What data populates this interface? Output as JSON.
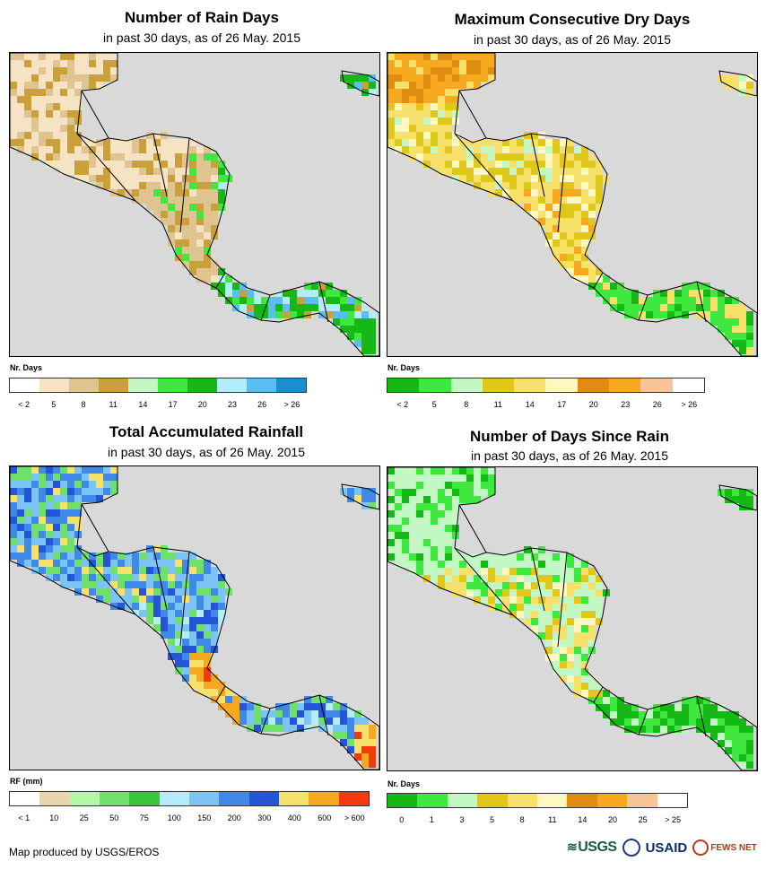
{
  "panels": [
    {
      "title": "Number of Rain Days",
      "subtitle": "in past 30 days, as of 26 May. 2015",
      "legend_label": "Nr. Days",
      "legend_colors": [
        "#ffffff",
        "#f5e3c3",
        "#e0c48f",
        "#c9a03a",
        "#c3f7c3",
        "#3ee83e",
        "#15b815",
        "#b5ecfb",
        "#5bbef0",
        "#1a8fd0"
      ],
      "ticks": [
        "< 2",
        "5",
        "8",
        "11",
        "14",
        "17",
        "20",
        "23",
        "26",
        "> 26"
      ],
      "scheme": "raindays"
    },
    {
      "title": "Maximum Consecutive Dry Days",
      "subtitle": "in past 30 days, as of 26 May. 2015",
      "legend_label": "Nr. Days",
      "legend_colors": [
        "#15b815",
        "#3ee83e",
        "#c3f7c3",
        "#e0c81a",
        "#f8e16a",
        "#fdf7c2",
        "#e08c10",
        "#f6a81e",
        "#f7c59a",
        "#ffffff"
      ],
      "ticks": [
        "< 2",
        "5",
        "8",
        "11",
        "14",
        "17",
        "20",
        "23",
        "26",
        "> 26"
      ],
      "scheme": "drydays"
    },
    {
      "title": "Total Accumulated Rainfall",
      "subtitle": "in past 30 days, as of 26 May. 2015",
      "legend_label": "RF (mm)",
      "legend_colors": [
        "#ffffff",
        "#e8d5b0",
        "#b5f7a2",
        "#6fe06a",
        "#38c838",
        "#b5ecfb",
        "#7cc4f5",
        "#3f8ae8",
        "#2355d6",
        "#f8e16a",
        "#f6a81e",
        "#f23a0a"
      ],
      "ticks": [
        "< 1",
        "10",
        "25",
        "50",
        "75",
        "100",
        "150",
        "200",
        "300",
        "400",
        "600",
        "> 600"
      ],
      "scheme": "rainfall"
    },
    {
      "title": "Number of Days Since Rain",
      "subtitle": "in past 30 days, as of 26 May. 2015",
      "legend_label": "Nr. Days",
      "legend_colors": [
        "#15b815",
        "#3ee83e",
        "#c3f7c3",
        "#e0c81a",
        "#f8e16a",
        "#fdf7c2",
        "#e08c10",
        "#f6a81e",
        "#f7c59a",
        "#ffffff"
      ],
      "ticks": [
        "0",
        "1",
        "3",
        "5",
        "8",
        "11",
        "14",
        "20",
        "25",
        "> 25"
      ],
      "scheme": "sincerain"
    }
  ],
  "credit": "Map produced by USGS/EROS",
  "logos": {
    "usgs": "USGS",
    "usaid": "USAID",
    "fews": "FEWS NET"
  },
  "colors": {
    "ocean": "#d9d9d9",
    "border": "#000000"
  }
}
